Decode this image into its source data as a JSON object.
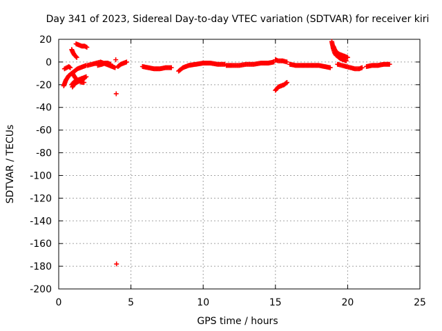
{
  "chart_data": {
    "type": "scatter",
    "title": "Day 341 of 2023, Sidereal Day-to-day VTEC variation (SDTVAR) for receiver kiri",
    "xlabel": "GPS time / hours",
    "ylabel": "SDTVAR / TECUs",
    "xlim": [
      0,
      25
    ],
    "ylim": [
      -200,
      20
    ],
    "xticks": [
      0,
      5,
      10,
      15,
      20,
      25
    ],
    "yticks": [
      20,
      0,
      -20,
      -40,
      -60,
      -80,
      -100,
      -120,
      -140,
      -160,
      -180,
      -200
    ],
    "grid": true,
    "marker": "plus",
    "color": "#ff0000",
    "segments": [
      {
        "x": [
          0.35,
          0.5,
          0.7,
          0.9,
          1.1,
          1.3,
          1.5,
          1.7,
          1.9
        ],
        "y": [
          -21,
          -16,
          -12,
          -10,
          -8,
          -6,
          -5,
          -4,
          -3
        ]
      },
      {
        "x": [
          0.4,
          0.55,
          0.7,
          0.8
        ],
        "y": [
          -6,
          -5,
          -4,
          -5
        ]
      },
      {
        "x": [
          0.9,
          1.1,
          1.3,
          1.5,
          1.7,
          1.9
        ],
        "y": [
          -20,
          -17,
          -16,
          -15,
          -14,
          -13
        ]
      },
      {
        "x": [
          0.95,
          1.1,
          1.25,
          1.4,
          1.55,
          1.7,
          1.8
        ],
        "y": [
          -22,
          -19,
          -18,
          -17,
          -16,
          -15,
          -14
        ]
      },
      {
        "x": [
          0.95,
          1.05,
          1.15,
          1.3,
          1.45,
          1.6,
          1.75
        ],
        "y": [
          -10,
          -12,
          -14,
          -16,
          -17,
          -18,
          -18
        ]
      },
      {
        "x": [
          0.9,
          1.0,
          1.1,
          1.25
        ],
        "y": [
          11,
          8,
          6,
          4
        ]
      },
      {
        "x": [
          1.2,
          1.4,
          1.6,
          1.8,
          1.95
        ],
        "y": [
          16,
          15,
          14,
          14,
          13
        ]
      },
      {
        "x": [
          2.0,
          2.3,
          2.6,
          2.9,
          3.1,
          3.3,
          3.5,
          3.7,
          3.9
        ],
        "y": [
          -3,
          -2,
          -1,
          0,
          -1,
          -2,
          -3,
          -4,
          -5
        ]
      },
      {
        "x": [
          2.7,
          3.0,
          3.2,
          3.4,
          3.6
        ],
        "y": [
          -3,
          -2,
          -1,
          -1,
          -2
        ]
      },
      {
        "x": [
          3.95
        ],
        "y": [
          2
        ]
      },
      {
        "x": [
          4.1,
          4.3,
          4.5,
          4.7
        ],
        "y": [
          -4,
          -2,
          -1,
          0
        ]
      },
      {
        "x": [
          3.98
        ],
        "y": [
          -28
        ]
      },
      {
        "x": [
          4.0
        ],
        "y": [
          -178
        ]
      },
      {
        "x": [
          5.8,
          6.2,
          6.6,
          7.0,
          7.4,
          7.8
        ],
        "y": [
          -4,
          -5,
          -6,
          -6,
          -5,
          -5
        ]
      },
      {
        "x": [
          8.3,
          8.6,
          9.0,
          9.5,
          10.0,
          10.5,
          11.0,
          11.5
        ],
        "y": [
          -8,
          -5,
          -3,
          -2,
          -1,
          -1,
          -2,
          -2
        ]
      },
      {
        "x": [
          11.6,
          12.0,
          12.5,
          13.0,
          13.5,
          14.0,
          14.5,
          14.9
        ],
        "y": [
          -3,
          -3,
          -3,
          -2,
          -2,
          -1,
          -1,
          0
        ]
      },
      {
        "x": [
          15.0,
          15.2,
          15.5,
          15.8
        ],
        "y": [
          2,
          1,
          1,
          0
        ]
      },
      {
        "x": [
          15.0,
          15.2,
          15.4,
          15.6,
          15.8
        ],
        "y": [
          -25,
          -22,
          -21,
          -20,
          -18
        ]
      },
      {
        "x": [
          16.0,
          16.4,
          16.8,
          17.2,
          17.6,
          18.0,
          18.4,
          18.8
        ],
        "y": [
          -2,
          -3,
          -3,
          -3,
          -3,
          -3,
          -4,
          -5
        ]
      },
      {
        "x": [
          18.9,
          18.95,
          19.0,
          19.05,
          19.1,
          19.2,
          19.3,
          19.4,
          19.5,
          19.7,
          19.9
        ],
        "y": [
          18,
          15,
          12,
          10,
          8,
          6,
          5,
          4,
          3,
          2,
          1
        ]
      },
      {
        "x": [
          19.0,
          19.1,
          19.2,
          19.4,
          19.6,
          19.8,
          20.0
        ],
        "y": [
          14,
          11,
          9,
          7,
          6,
          5,
          4
        ]
      },
      {
        "x": [
          19.3,
          19.6,
          19.9,
          20.2,
          20.5,
          20.8,
          21.0
        ],
        "y": [
          -2,
          -3,
          -4,
          -5,
          -6,
          -6,
          -5
        ]
      },
      {
        "x": [
          21.3,
          21.7,
          22.1,
          22.5,
          22.9
        ],
        "y": [
          -4,
          -3,
          -3,
          -2,
          -2
        ]
      }
    ]
  }
}
